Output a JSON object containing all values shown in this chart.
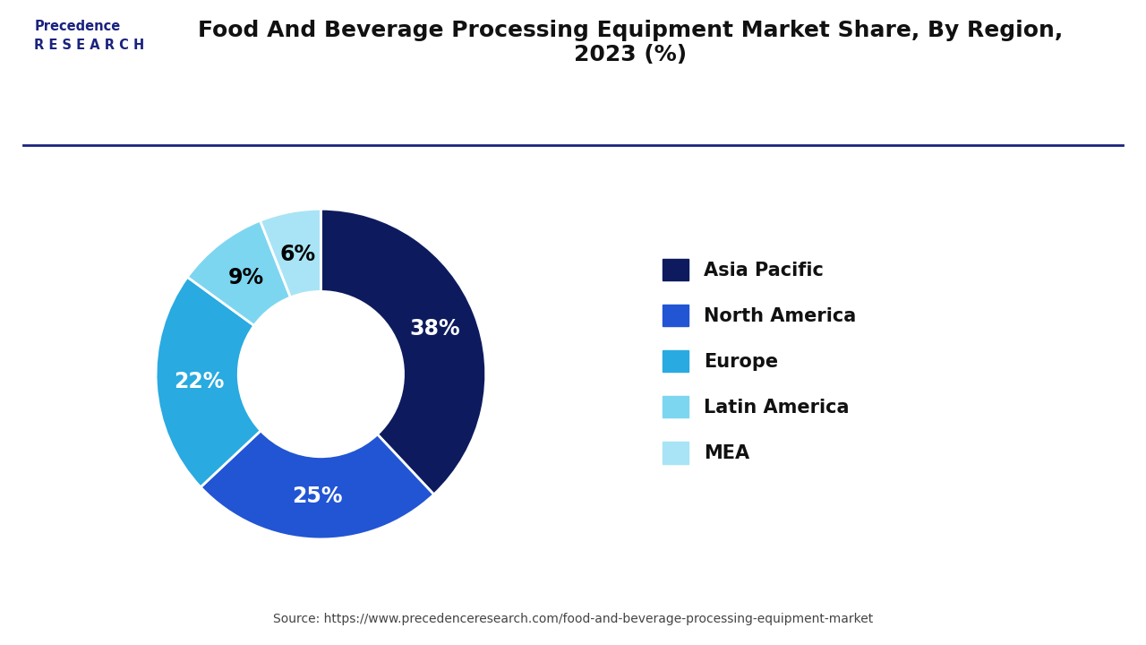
{
  "title": "Food And Beverage Processing Equipment Market Share, By Region,\n2023 (%)",
  "regions": [
    "Asia Pacific",
    "North America",
    "Europe",
    "Latin America",
    "MEA"
  ],
  "values": [
    38,
    25,
    22,
    9,
    6
  ],
  "colors": [
    "#0d1b5e",
    "#2255d4",
    "#29aae1",
    "#7dd6f0",
    "#a8e4f5"
  ],
  "label_colors": [
    "white",
    "white",
    "white",
    "black",
    "black"
  ],
  "source": "Source: https://www.precedenceresearch.com/food-and-beverage-processing-equipment-market",
  "background_color": "#ffffff",
  "border_color": "#1a237e",
  "title_fontsize": 18,
  "legend_fontsize": 15,
  "pct_fontsize": 17
}
